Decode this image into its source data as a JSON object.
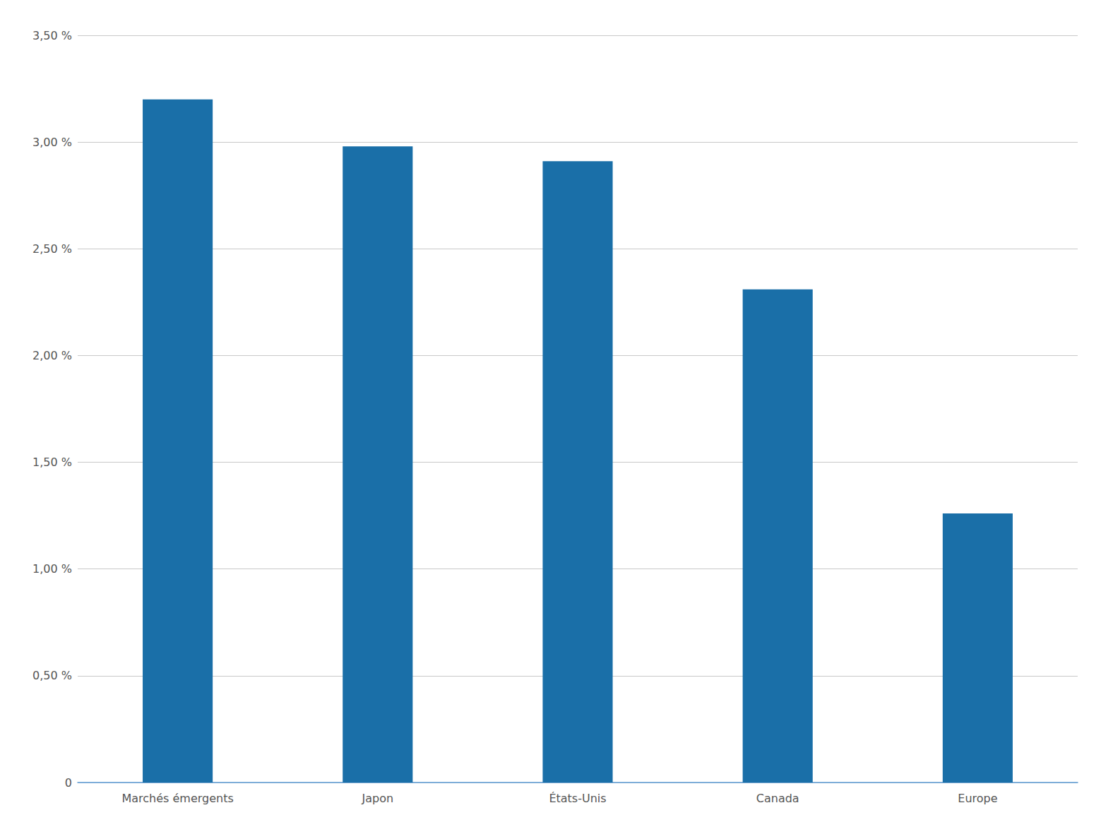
{
  "chart_data": {
    "type": "bar",
    "categories": [
      "Marchés émergents",
      "Japon",
      "États-Unis",
      "Canada",
      "Europe"
    ],
    "values": [
      3.2,
      2.98,
      2.91,
      2.31,
      1.26
    ],
    "color": "#1a6fa8",
    "ylim": [
      0,
      3.5
    ],
    "yticks": [
      0,
      {
        "value": 0.5,
        "label": "0,50 %"
      },
      {
        "value": 1.0,
        "label": "1,00 %"
      },
      {
        "value": 1.5,
        "label": "1,50 %"
      },
      {
        "value": 2.0,
        "label": "2,00 %"
      },
      {
        "value": 2.5,
        "label": "2,50 %"
      },
      {
        "value": 3.0,
        "label": "3,00 %"
      },
      {
        "value": 3.5,
        "label": "3,50 %"
      }
    ],
    "grid": true
  }
}
